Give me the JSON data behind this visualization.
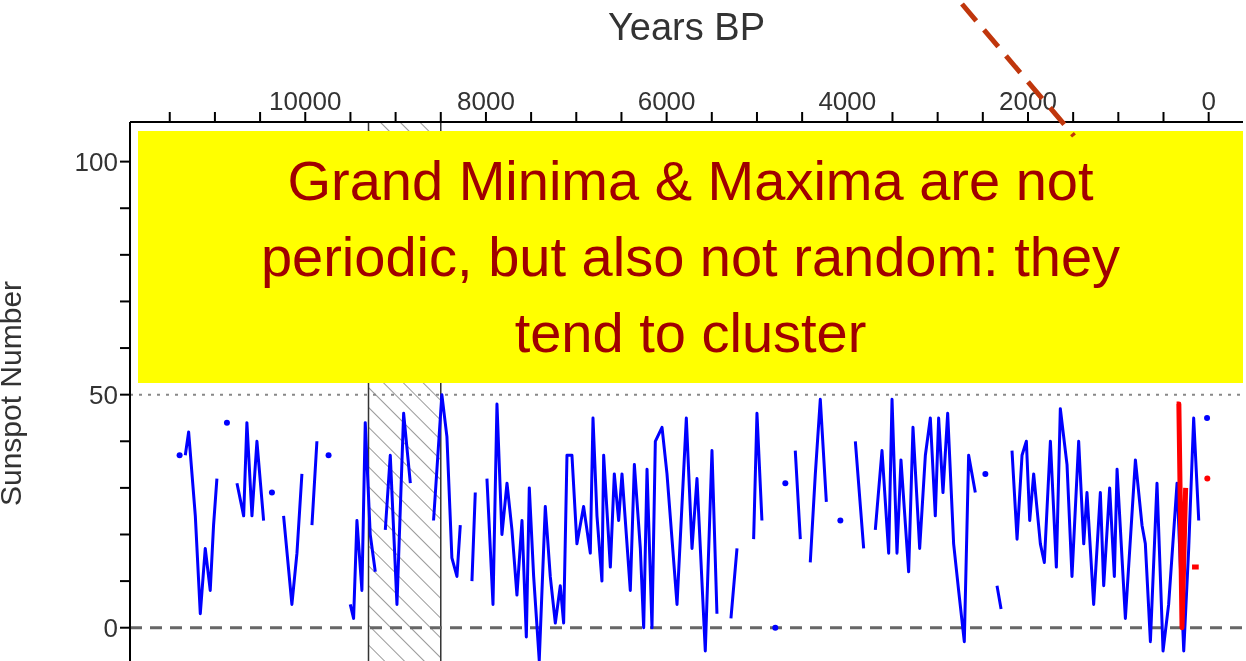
{
  "chart_data": {
    "type": "line",
    "xlabel": "Years BP",
    "ylabel": "Sunspot Number",
    "annotations": [
      "Grand Minima & Maxima are not periodic, but also not random: they tend to cluster"
    ],
    "xlim": [
      11940,
      -380
    ],
    "ylim": [
      -8,
      108.5
    ],
    "xticks": [
      {
        "value": 11500,
        "label": null
      },
      {
        "value": 11000,
        "label": null
      },
      {
        "value": 10500,
        "label": null
      },
      10000,
      {
        "value": 9500,
        "label": null
      },
      {
        "value": 9000,
        "label": null
      },
      {
        "value": 8500,
        "label": null
      },
      8000,
      {
        "value": 7500,
        "label": null
      },
      {
        "value": 7000,
        "label": null
      },
      {
        "value": 6500,
        "label": null
      },
      6000,
      {
        "value": 5500,
        "label": null
      },
      {
        "value": 5000,
        "label": null
      },
      {
        "value": 4500,
        "label": null
      },
      4000,
      {
        "value": 3500,
        "label": null
      },
      {
        "value": 3000,
        "label": null
      },
      {
        "value": 2500,
        "label": null
      },
      2000,
      {
        "value": 1500,
        "label": null
      },
      {
        "value": 1000,
        "label": null
      },
      {
        "value": 500,
        "label": null
      },
      0
    ],
    "yticks": [
      0,
      {
        "value": 10,
        "label": null
      },
      {
        "value": 20,
        "label": null
      },
      {
        "value": 30,
        "label": null
      },
      {
        "value": 40,
        "label": null
      },
      50,
      {
        "value": 60,
        "label": null
      },
      {
        "value": 70,
        "label": null
      },
      {
        "value": 80,
        "label": null
      },
      {
        "value": 90,
        "label": null
      },
      100
    ],
    "grid": false,
    "ref_lines": [
      {
        "axis": "y",
        "value": 50,
        "color": "#888888",
        "line_style": "dotted"
      },
      {
        "axis": "y",
        "value": 0,
        "color": "#666666",
        "line_style": "dashed"
      }
    ],
    "bands": [
      {
        "axis": "x",
        "from": 9300,
        "to": 8500,
        "color": "#333333"
      }
    ],
    "series": [
      {
        "color": "#0000ff",
        "x": [
          11391,
          11366,
          11328,
          11291,
          11254,
          11217,
          11162,
          11107,
          11052,
          11015,
          10978,
          10948,
          10867,
          10830,
          10756,
          10682,
          10646,
          10590,
          10535,
          10461,
          10424,
          10369,
          10314,
          10240,
          10148,
          10092,
          10037,
          9982,
          9926,
          9871,
          9816,
          9742,
          9687,
          9502,
          9465,
          9428,
          9373,
          9336,
          9281,
          9225,
          9188,
          9114,
          9059,
          8985,
          8911,
          8837,
          8763,
          8580,
          8488,
          8432,
          8377,
          8321,
          8284,
          8229,
          8155,
          8118,
          8063,
          7989,
          7922,
          7878,
          7823,
          7767,
          7712,
          7657,
          7601,
          7553,
          7520,
          7472,
          7410,
          7343,
          7288,
          7232,
          7177,
          7140,
          7103,
          7048,
          6993,
          6919,
          6845,
          6815,
          6771,
          6716,
          6697,
          6623,
          6579,
          6531,
          6494,
          6402,
          6357,
          6291,
          6254,
          6217,
          6162,
          6125,
          6051,
          5996,
          5885,
          5782,
          5719,
          5664,
          5572,
          5498,
          5443,
          5351,
          5288,
          5221,
          5148,
          5037,
          5000,
          4945,
          4889,
          4797,
          4742,
          4686,
          4631,
          4576,
          4520,
          4465,
          4410,
          4354,
          4299,
          4232,
          4188,
          4077,
          4004,
          3911,
          3819,
          3764,
          3690,
          3616,
          3542,
          3505,
          3450,
          3406,
          3321,
          3273,
          3199,
          3136,
          3081,
          3026,
          2989,
          2941,
          2889,
          2823,
          2768,
          2705,
          2657,
          2583,
          2546,
          2472,
          2398,
          2343,
          2298,
          2232,
          2177,
          2121,
          2066,
          2018,
          1981,
          1937,
          1863,
          1819,
          1752,
          1686,
          1642,
          1568,
          1513,
          1439,
          1383,
          1347,
          1273,
          1199,
          1162,
          1096,
          1044,
          1014,
          922,
          811,
          738,
          701,
          645,
          572,
          505,
          443,
          350,
          276,
          221,
          166,
          110,
          73,
          18
        ],
        "values": [
          37,
          null,
          37,
          42,
          33,
          24,
          3,
          17,
          8,
          22,
          32,
          null,
          44,
          null,
          31,
          24,
          44,
          24,
          40,
          23,
          null,
          29,
          null,
          24,
          5,
          16,
          33,
          null,
          22,
          40,
          null,
          37,
          null,
          5,
          2,
          23,
          8,
          44,
          20,
          12,
          null,
          21,
          37,
          5,
          46,
          31,
          null,
          23,
          50,
          41,
          15,
          11,
          22,
          null,
          10,
          29,
          null,
          32,
          5,
          48,
          20,
          31,
          21,
          7,
          23,
          -2,
          30,
          11,
          -7,
          26,
          11,
          1,
          9,
          1,
          37,
          37,
          18,
          26,
          16,
          45,
          24,
          10,
          37,
          13,
          33,
          23,
          33,
          8,
          35,
          17,
          0,
          34,
          0,
          40,
          43,
          33,
          5,
          45,
          17,
          32,
          -5,
          38,
          3,
          null,
          2,
          17,
          null,
          19,
          46,
          23,
          null,
          0,
          null,
          31,
          null,
          38,
          19,
          null,
          14,
          33,
          49,
          27,
          null,
          23,
          null,
          40,
          17,
          null,
          21,
          38,
          16,
          49,
          16,
          36,
          12,
          43,
          17,
          37,
          45,
          24,
          45,
          29,
          46,
          18,
          8,
          -3,
          37,
          29,
          null,
          33,
          null,
          9,
          4,
          null,
          38,
          19,
          37,
          40,
          23,
          33,
          18,
          14,
          40,
          13,
          47,
          35,
          11,
          40,
          18,
          29,
          5,
          29,
          9,
          30,
          11,
          34,
          2,
          36,
          22,
          18,
          -3,
          31,
          -5,
          5,
          31,
          -5,
          17,
          45,
          23,
          null,
          45
        ]
      },
      {
        "color": "#ff0000",
        "x": [
          355,
          330,
          295,
          255,
          215,
          184,
          110,
          70,
          15
        ],
        "values": [
          48,
          48,
          0,
          30,
          null,
          13,
          13,
          null,
          32
        ]
      }
    ]
  }
}
